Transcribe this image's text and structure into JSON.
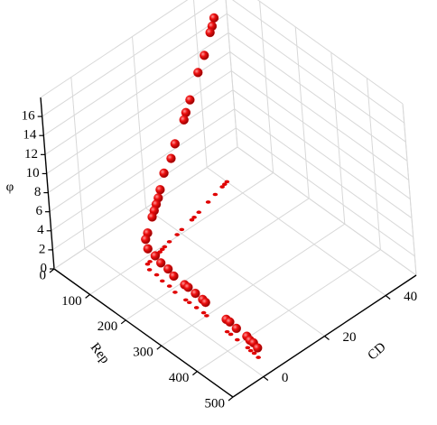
{
  "chart_data": {
    "type": "scatter3d",
    "x_label": "Rep",
    "y_label": "CD",
    "z_label": "φ",
    "xlim": [
      0,
      500
    ],
    "ylim": [
      -10,
      50
    ],
    "zlim": [
      0,
      18
    ],
    "xticks": [
      0,
      100,
      200,
      300,
      400,
      500
    ],
    "yticks": [
      0,
      20,
      40
    ],
    "zticks": [
      0,
      2,
      4,
      6,
      8,
      10,
      12,
      14,
      16
    ],
    "grid": true,
    "floor_projection": true,
    "series": [
      {
        "color": "#e00000",
        "x": [
          56,
          58,
          60,
          66,
          72,
          80,
          84,
          86,
          92,
          96,
          100,
          104,
          106,
          108,
          110,
          112,
          114,
          116,
          130,
          150,
          170,
          190,
          210,
          240,
          250,
          270,
          290,
          300,
          360,
          370,
          390,
          420,
          430,
          440,
          454
        ],
        "y": [
          40,
          39,
          38,
          35,
          32,
          28,
          26,
          25,
          21,
          19,
          16,
          14,
          13,
          12,
          11,
          10,
          8,
          7,
          6,
          6,
          5.5,
          5.5,
          5,
          5,
          5,
          5,
          5,
          4.8,
          4.5,
          4.5,
          4.3,
          4.2,
          4,
          4,
          3.7
        ],
        "z": [
          17.2,
          16.6,
          16.2,
          14.6,
          13.6,
          11.8,
          11.0,
          10.5,
          9.0,
          8.0,
          7.2,
          6.0,
          5.4,
          5.0,
          4.6,
          4.2,
          3.0,
          2.6,
          2.2,
          2.0,
          1.9,
          1.8,
          1.7,
          1.6,
          1.6,
          1.5,
          1.4,
          1.4,
          1.3,
          1.3,
          1.2,
          1.2,
          1.1,
          1.1,
          1.0
        ]
      }
    ]
  }
}
